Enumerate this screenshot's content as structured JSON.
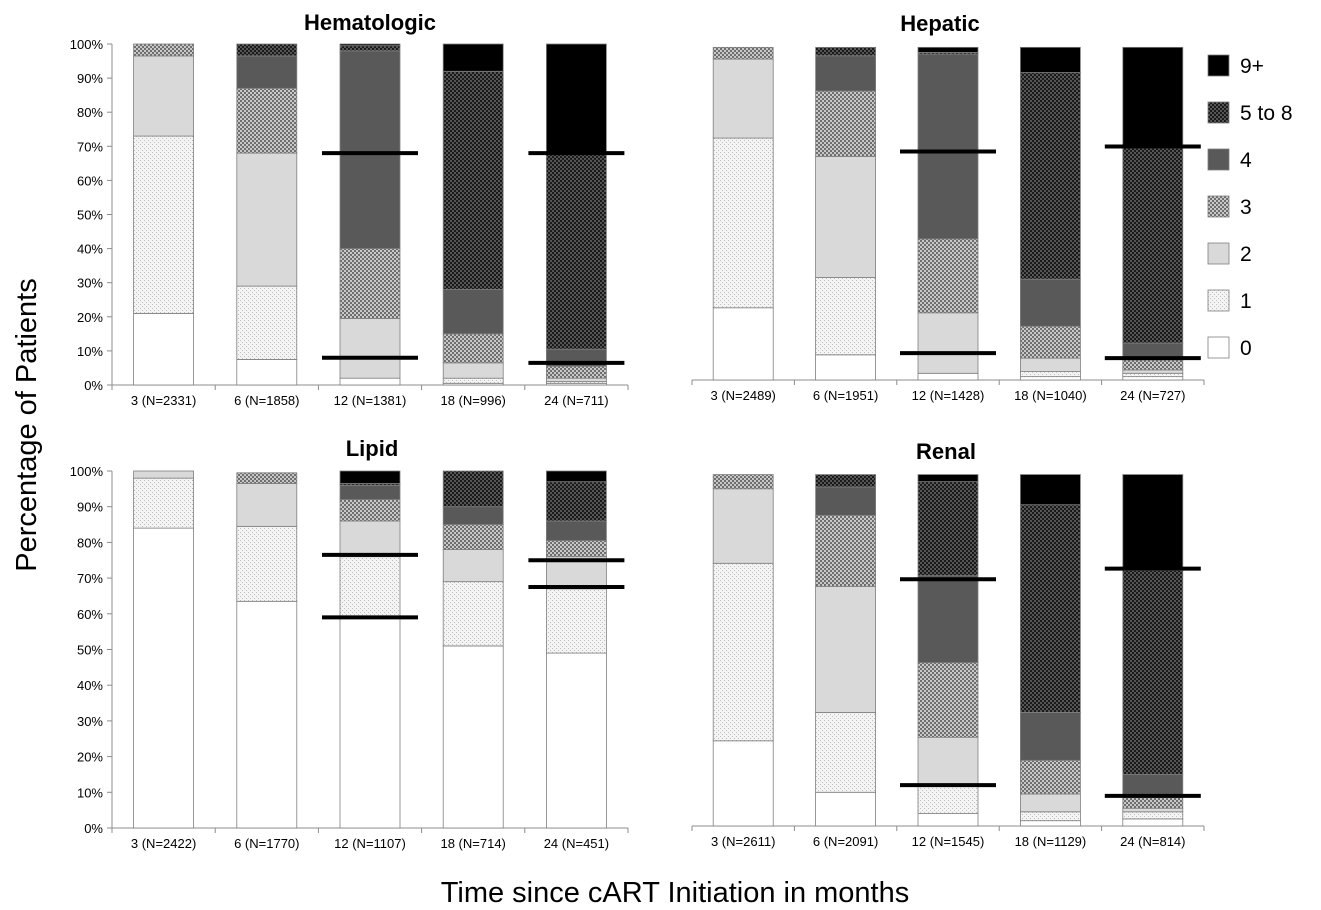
{
  "chart_data": {
    "type": "bar",
    "stacked": true,
    "ylabel": "Percentage of Patients",
    "xlabel": "Time since cART Initiation in months",
    "ylim": [
      0,
      100
    ],
    "yticks": [
      "0%",
      "10%",
      "20%",
      "30%",
      "40%",
      "50%",
      "60%",
      "70%",
      "80%",
      "90%",
      "100%"
    ],
    "grid": false,
    "legend_position": "right",
    "legend": [
      {
        "label": "9+",
        "fill": "c9"
      },
      {
        "label": "5 to 8",
        "fill": "c58"
      },
      {
        "label": "4",
        "fill": "c4"
      },
      {
        "label": "3",
        "fill": "c3"
      },
      {
        "label": "2",
        "fill": "c2"
      },
      {
        "label": "1",
        "fill": "c1"
      },
      {
        "label": "0",
        "fill": "c0"
      }
    ],
    "score_levels": [
      "0",
      "1",
      "2",
      "3",
      "4",
      "5 to 8",
      "9+"
    ],
    "colors": {
      "c0": "#ffffff",
      "c1": "#ededed",
      "c2": "#d9d9d9",
      "c3": "#9a9a9a",
      "c4": "#595959",
      "c58": "#2e2e2e",
      "c9": "#000000"
    },
    "panels": [
      {
        "title": "Hematologic",
        "categories": [
          "3 (N=2331)",
          "6 (N=1858)",
          "12 (N=1381)",
          "18 (N=996)",
          "24 (N=711)"
        ],
        "series": [
          {
            "name": "0",
            "values": [
              21,
              7.5,
              2,
              0.5,
              0.5
            ]
          },
          {
            "name": "1",
            "values": [
              52,
              21.5,
              0,
              1.5,
              0.5
            ]
          },
          {
            "name": "2",
            "values": [
              23.5,
              39,
              17.5,
              4.5,
              1
            ]
          },
          {
            "name": "3",
            "values": [
              3.5,
              19,
              20.5,
              8.5,
              3.5
            ]
          },
          {
            "name": "4",
            "values": [
              0,
              9.5,
              58,
              13,
              5
            ]
          },
          {
            "name": "5 to 8",
            "values": [
              0,
              3.5,
              1.5,
              64,
              57.5
            ]
          },
          {
            "name": "9+",
            "values": [
              0,
              0,
              0.5,
              8,
              32
            ]
          }
        ],
        "ref_lines": [
          {
            "category": "12 (N=1381)",
            "values": [
              8,
              68
            ]
          },
          {
            "category": "24 (N=711)",
            "values": [
              6.5,
              68
            ]
          }
        ]
      },
      {
        "title": "Hepatic",
        "categories": [
          "3 (N=2489)",
          "6 (N=1951)",
          "12 (N=1428)",
          "18 (N=1040)",
          "24 (N=727)"
        ],
        "series": [
          {
            "name": "0",
            "values": [
              21.5,
              7.5,
              2,
              1,
              1
            ]
          },
          {
            "name": "1",
            "values": [
              50.5,
              23,
              0,
              1.5,
              1
            ]
          },
          {
            "name": "2",
            "values": [
              23.5,
              36,
              18,
              4,
              1
            ]
          },
          {
            "name": "3",
            "values": [
              3.5,
              19.5,
              22,
              9.5,
              3
            ]
          },
          {
            "name": "4",
            "values": [
              0,
              10.5,
              55,
              14,
              5
            ]
          },
          {
            "name": "5 to 8",
            "values": [
              0,
              2.5,
              0.5,
              61.5,
              58
            ]
          },
          {
            "name": "9+",
            "values": [
              0,
              0,
              1.5,
              7.5,
              30
            ]
          }
        ],
        "ref_lines": [
          {
            "category": "12 (N=1428)",
            "values": [
              8,
              68
            ]
          },
          {
            "category": "24 (N=727)",
            "values": [
              6.5,
              69.5
            ]
          }
        ]
      },
      {
        "title": "Lipid",
        "categories": [
          "3 (N=2422)",
          "6 (N=1770)",
          "12 (N=1107)",
          "18 (N=714)",
          "24 (N=451)"
        ],
        "series": [
          {
            "name": "0",
            "values": [
              84,
              63.5,
              59,
              51,
              49
            ]
          },
          {
            "name": "1",
            "values": [
              14,
              21,
              17,
              18,
              18
            ]
          },
          {
            "name": "2",
            "values": [
              2,
              12,
              10,
              9,
              9
            ]
          },
          {
            "name": "3",
            "values": [
              0,
              3,
              6,
              7,
              4.5
            ]
          },
          {
            "name": "4",
            "values": [
              0,
              0,
              4,
              5,
              5.5
            ]
          },
          {
            "name": "5 to 8",
            "values": [
              0,
              0,
              0.5,
              10,
              11
            ]
          },
          {
            "name": "9+",
            "values": [
              0,
              0,
              3.5,
              0,
              3
            ]
          }
        ],
        "ref_lines": [
          {
            "category": "12 (N=1107)",
            "values": [
              59,
              76.5
            ]
          },
          {
            "category": "24 (N=451)",
            "values": [
              67.5,
              75
            ]
          }
        ]
      },
      {
        "title": "Renal",
        "categories": [
          "3 (N=2611)",
          "6 (N=2091)",
          "12 (N=1545)",
          "18 (N=1129)",
          "24 (N=814)"
        ],
        "series": [
          {
            "name": "0",
            "values": [
              24,
              9.5,
              3.5,
              1.5,
              2
            ]
          },
          {
            "name": "1",
            "values": [
              50,
              22.5,
              8,
              2.5,
              2
            ]
          },
          {
            "name": "2",
            "values": [
              21,
              35.5,
              13.5,
              5,
              1
            ]
          },
          {
            "name": "3",
            "values": [
              4,
              20,
              21,
              9.5,
              3.5
            ]
          },
          {
            "name": "4",
            "values": [
              0,
              8,
              24.5,
              13.5,
              6
            ]
          },
          {
            "name": "5 to 8",
            "values": [
              0,
              3.5,
              26.5,
              58.5,
              57.5
            ]
          },
          {
            "name": "9+",
            "values": [
              0,
              0,
              2,
              8.5,
              27
            ]
          }
        ],
        "ref_lines": [
          {
            "category": "12 (N=1545)",
            "values": [
              11.5,
              69.5
            ]
          },
          {
            "category": "24 (N=814)",
            "values": [
              8.5,
              72.5
            ]
          }
        ]
      }
    ]
  }
}
